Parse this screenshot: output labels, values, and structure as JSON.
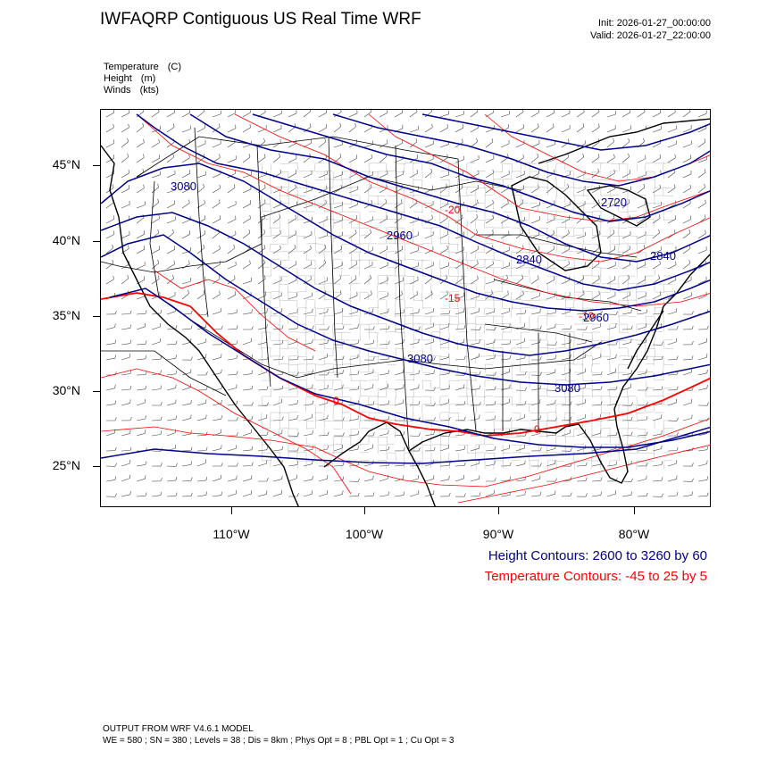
{
  "header": {
    "title": "IWFAQRP Contiguous US Real Time WRF",
    "init_label": "Init: 2026-01-27_00:00:00",
    "valid_label": "Valid: 2026-01-27_22:00:00"
  },
  "fields": [
    {
      "name": "Temperature",
      "unit": "(C)"
    },
    {
      "name": "Height",
      "unit": "(m)"
    },
    {
      "name": "Winds",
      "unit": "(kts)"
    }
  ],
  "axes": {
    "lat_labels": [
      "45°N",
      "40°N",
      "35°N",
      "30°N",
      "25°N"
    ],
    "lon_labels": [
      "110°W",
      "100°W",
      "90°W",
      "80°W"
    ]
  },
  "contour_labels": {
    "height": [
      "3080",
      "2960",
      "2720",
      "2840",
      "2840",
      "2960",
      "3080",
      "3080"
    ],
    "temperature": [
      "-20",
      "-15",
      "0",
      "0",
      "-10"
    ]
  },
  "legend": {
    "height": "Height Contours: 2600 to 3260 by 60",
    "temperature": "Temperature Contours: -45 to 25 by 5"
  },
  "footer": {
    "line1": "OUTPUT FROM WRF V4.6.1 MODEL",
    "line2": "WE = 580 ; SN = 380 ; Levels = 38 ; Dis = 8km ; Phys Opt = 8 ; PBL Opt = 1 ; Cu Opt = 3"
  },
  "colors": {
    "height_contour": "#00008b",
    "temperature_contour": "#ff0000",
    "boundaries": "#000000"
  }
}
